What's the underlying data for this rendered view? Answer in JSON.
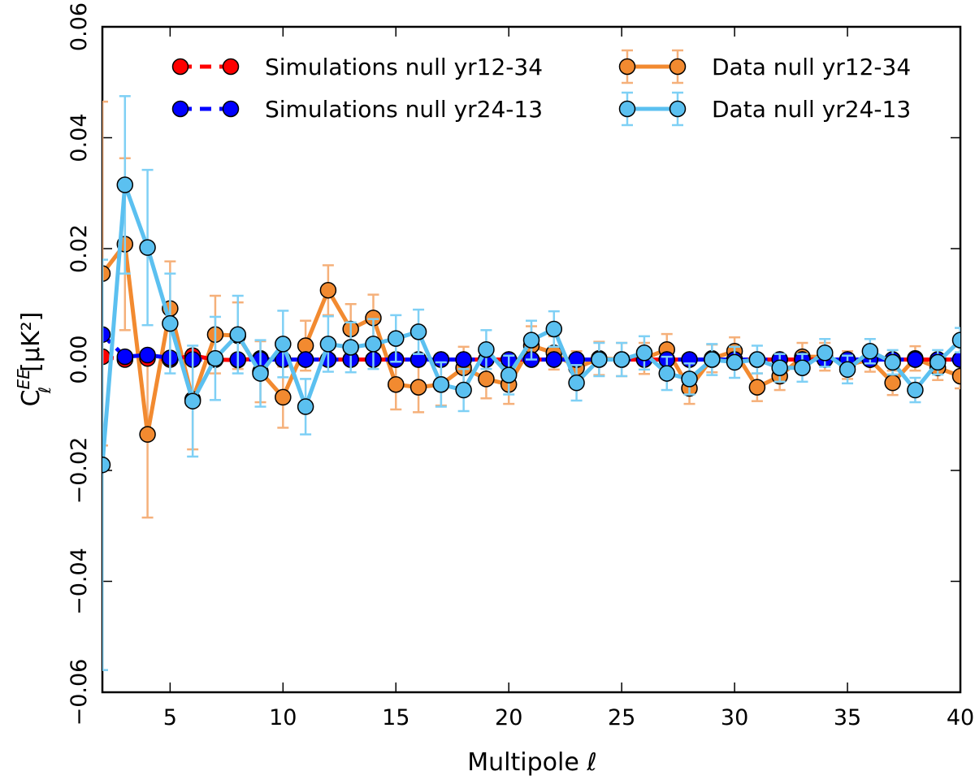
{
  "chart_data": {
    "type": "line",
    "title": "",
    "xlabel": "Multipole ℓ",
    "ylabel": "CℓEE [μK²]",
    "ylabel_main": "C",
    "ylabel_sup": "EE",
    "ylabel_sub": "ℓ",
    "ylabel_unit": "[μK²]",
    "xlim": [
      2,
      40
    ],
    "ylim": [
      -0.06,
      0.06
    ],
    "xticks": [
      5,
      10,
      15,
      20,
      25,
      30,
      35,
      40
    ],
    "yticks": [
      -0.06,
      -0.04,
      -0.02,
      0.0,
      0.02,
      0.04,
      0.06
    ],
    "xtick_labels": [
      "5",
      "10",
      "15",
      "20",
      "25",
      "30",
      "35",
      "40"
    ],
    "ytick_labels": [
      "−0.06",
      "−0.04",
      "−0.02",
      "0.00",
      "0.02",
      "0.04",
      "0.06"
    ],
    "legend_position": "top-right",
    "series": [
      {
        "name": "Simulations null yr12-34",
        "color": "#ff0000",
        "style": "dashed",
        "x": [
          2,
          3,
          4,
          5,
          6,
          7,
          8,
          9,
          10,
          11,
          12,
          13,
          14,
          15,
          16,
          17,
          18,
          19,
          20,
          21,
          22,
          23,
          24,
          25,
          26,
          27,
          28,
          29,
          30,
          31,
          32,
          33,
          34,
          35,
          36,
          37,
          38,
          39,
          40
        ],
        "y": [
          0.0005,
          0.0,
          0.0002,
          0.0,
          0.0007,
          0.0,
          -0.0001,
          0.0002,
          0.0,
          0.0,
          0.0,
          0.0,
          0.0,
          0.0,
          0.0,
          0.0,
          0.0,
          0.0,
          0.0,
          0.0,
          0.0,
          0.0,
          0.0,
          0.0,
          0.0,
          0.0,
          0.0,
          0.0,
          0.0,
          0.0,
          0.0,
          0.0,
          0.0,
          0.0,
          0.0,
          0.0,
          0.0,
          0.0,
          0.0
        ]
      },
      {
        "name": "Simulations null yr24-13",
        "color": "#0000ff",
        "style": "dashed",
        "x": [
          2,
          3,
          4,
          5,
          6,
          7,
          8,
          9,
          10,
          11,
          12,
          13,
          14,
          15,
          16,
          17,
          18,
          19,
          20,
          21,
          22,
          23,
          24,
          25,
          26,
          27,
          28,
          29,
          30,
          31,
          32,
          33,
          34,
          35,
          36,
          37,
          38,
          39,
          40
        ],
        "y": [
          0.0045,
          0.0005,
          0.0008,
          0.0003,
          0.0,
          0.0,
          0.0,
          0.0,
          0.0,
          0.0,
          0.0,
          0.0,
          0.0,
          0.0,
          0.0,
          0.0,
          0.0,
          0.0,
          0.0,
          0.0,
          0.0,
          0.0,
          0.0,
          0.0,
          0.0,
          0.0,
          0.0,
          0.0,
          0.0,
          0.0,
          0.0,
          0.0,
          0.0,
          0.0,
          0.0,
          0.0,
          0.0,
          0.0,
          0.0
        ]
      },
      {
        "name": "Data null yr12-34",
        "color": "#f28a30",
        "errcolor": "#f5b07a",
        "style": "solid",
        "x": [
          2,
          3,
          4,
          5,
          6,
          7,
          8,
          9,
          10,
          11,
          12,
          13,
          14,
          15,
          16,
          17,
          18,
          19,
          20,
          21,
          22,
          23,
          24,
          25,
          26,
          27,
          28,
          29,
          30,
          31,
          32,
          33,
          34,
          35,
          36,
          37,
          38,
          39,
          40
        ],
        "y": [
          0.0155,
          0.0208,
          -0.0135,
          0.0092,
          -0.0072,
          0.0045,
          0.0043,
          -0.0022,
          -0.0068,
          0.0025,
          0.0125,
          0.0055,
          0.0075,
          -0.0045,
          -0.005,
          -0.0045,
          -0.0015,
          -0.0035,
          -0.0045,
          0.0025,
          0.0012,
          -0.0015,
          0.0002,
          0.0,
          0.0002,
          0.0018,
          -0.0052,
          0.0002,
          0.0015,
          -0.005,
          -0.003,
          0.0005,
          0.0005,
          -0.001,
          0.0,
          -0.0042,
          0.0002,
          -0.0015,
          -0.003
        ],
        "err": [
          0.031,
          0.0155,
          0.015,
          0.0085,
          0.009,
          0.007,
          0.006,
          0.0055,
          0.0055,
          0.0045,
          0.0045,
          0.0045,
          0.0042,
          0.0045,
          0.0045,
          0.0038,
          0.0038,
          0.0035,
          0.0035,
          0.0035,
          0.003,
          0.003,
          0.003,
          0.003,
          0.0028,
          0.0028,
          0.0028,
          0.0025,
          0.0025,
          0.0025,
          0.0025,
          0.0025,
          0.0025,
          0.0025,
          0.0022,
          0.0022,
          0.0022,
          0.0022,
          0.0022
        ]
      },
      {
        "name": "Data null yr24-13",
        "color": "#5bc0f0",
        "errcolor": "#7fd0f5",
        "style": "solid",
        "x": [
          2,
          3,
          4,
          5,
          6,
          7,
          8,
          9,
          10,
          11,
          12,
          13,
          14,
          15,
          16,
          17,
          18,
          19,
          20,
          21,
          22,
          23,
          24,
          25,
          26,
          27,
          28,
          29,
          30,
          31,
          32,
          33,
          34,
          35,
          36,
          37,
          38,
          39,
          40
        ],
        "y": [
          -0.019,
          0.0315,
          0.0202,
          0.0065,
          -0.0075,
          0.0002,
          0.0045,
          -0.0025,
          0.0028,
          -0.0085,
          0.0028,
          0.0022,
          0.0028,
          0.0038,
          0.005,
          -0.0045,
          -0.0055,
          0.0018,
          -0.0028,
          0.0035,
          0.0055,
          -0.0042,
          0.0,
          0.0,
          0.0012,
          -0.0025,
          -0.0035,
          0.0,
          -0.0005,
          0.0,
          -0.0015,
          -0.0015,
          0.0012,
          -0.0018,
          0.0015,
          -0.0005,
          -0.0055,
          -0.0005,
          0.0035
        ],
        "err": [
          0.037,
          0.016,
          0.014,
          0.009,
          0.01,
          0.0075,
          0.007,
          0.006,
          0.006,
          0.005,
          0.005,
          0.0045,
          0.0045,
          0.0042,
          0.004,
          0.004,
          0.0038,
          0.0035,
          0.0035,
          0.0035,
          0.0032,
          0.0032,
          0.003,
          0.003,
          0.003,
          0.003,
          0.0028,
          0.0028,
          0.0028,
          0.0025,
          0.0025,
          0.0025,
          0.0025,
          0.0025,
          0.0022,
          0.0022,
          0.0022,
          0.0022,
          0.0022
        ]
      }
    ]
  }
}
